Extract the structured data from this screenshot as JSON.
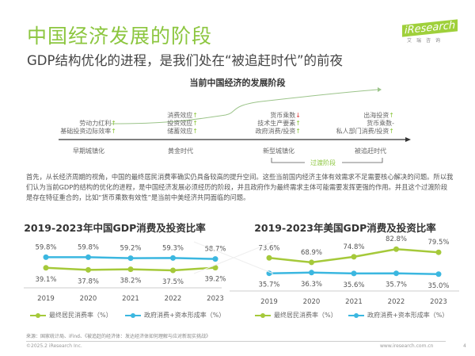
{
  "header": {
    "title": "中国经济发展的阶段",
    "subtitle": "GDP结构优化的进程，是我们处在“被追赶时代”的前夜",
    "logo_text": "iResearch",
    "logo_cn": "艾瑞咨询"
  },
  "timeline": {
    "title": "当前中国经济的发展阶段",
    "groups": [
      {
        "lines": [
          {
            "text": "劳动力红利",
            "arrow": "↑",
            "trend": "up"
          },
          {
            "text": "基础投资边际效率",
            "arrow": "↑",
            "trend": "up"
          }
        ]
      },
      {
        "lines": [
          {
            "text": "消费效应",
            "arrow": "↑",
            "trend": "up"
          },
          {
            "text": "投资效应",
            "arrow": "↑",
            "trend": "up"
          },
          {
            "text": "储蓄效应",
            "arrow": "↑",
            "trend": "up"
          }
        ]
      },
      {
        "lines": [
          {
            "text": "货币乘数",
            "arrow": "↓",
            "trend": "down"
          },
          {
            "text": "技术生产要素",
            "arrow": "↑",
            "trend": "up"
          },
          {
            "text": "政府消费/投资",
            "arrow": "↑",
            "trend": "up"
          }
        ]
      },
      {
        "lines": [
          {
            "text": "出海投资",
            "arrow": "↑",
            "trend": "up"
          },
          {
            "text": "货币乘数",
            "arrow": "-",
            "trend": "flat"
          },
          {
            "text": "私人部门消费/投资",
            "arrow": "↑",
            "trend": "up"
          }
        ]
      }
    ],
    "stages": [
      "早期城镇化",
      "黄金时代",
      "新型城镇化",
      "被追赶时代"
    ],
    "transition_label": "过渡阶段"
  },
  "paragraph": "首先，从长经济周期的视角，中国的最终居民消费率确实仍具备较高的提升空间。这些当前国内经济主体有效需求不足需要核心解决的问题。所以我们认为当前GDP的结构的优化的进程，是中国经济发展必须经历的阶段，并且政府作为最终需求主体可能需要发挥更强的作用。并且这个过渡阶段是存在特征重合的，比如“货币乘数有效性”是当前中美经济共同面临的问题。",
  "colors": {
    "green": "#a5c93a",
    "blue": "#3bb7e0",
    "title_green": "#8cc63f"
  },
  "chart_data": [
    {
      "type": "line",
      "title": "2019-2023年中国GDP消费及投资比率",
      "categories": [
        "2019",
        "2020",
        "2021",
        "2022",
        "2023"
      ],
      "series": [
        {
          "name": "最终居民消费率（%）",
          "values": [
            39.1,
            37.8,
            38.2,
            37.5,
            39.2
          ],
          "color": "#a5c93a"
        },
        {
          "name": "政府消费+资本形成率（%）",
          "values": [
            59.8,
            59.8,
            59.2,
            59.3,
            58.7
          ],
          "color": "#3bb7e0"
        }
      ],
      "data_labels": [
        [
          "39.1%",
          "37.8%",
          "38.2%",
          "37.5%",
          "39.2%"
        ],
        [
          "59.8%",
          "59.8%",
          "59.2%",
          "59.3%",
          "58.7%"
        ]
      ],
      "legend": "bottom"
    },
    {
      "type": "line",
      "title": "2019-2023年美国GDP消费及投资比率",
      "categories": [
        "2019",
        "2020",
        "2021",
        "2022",
        "2023"
      ],
      "series": [
        {
          "name": "最终居民消费率（%）",
          "values": [
            73.6,
            68.9,
            74.8,
            82.8,
            79.5
          ],
          "color": "#a5c93a"
        },
        {
          "name": "政府消费+资本形成率（%）",
          "values": [
            35.7,
            36.3,
            35.6,
            35.7,
            35.0
          ],
          "color": "#3bb7e0"
        }
      ],
      "data_labels": [
        [
          "73.6%",
          "68.9%",
          "74.8%",
          "82.8%",
          "79.5%"
        ],
        [
          "35.7%",
          "36.3%",
          "35.6%",
          "35.7%",
          "35.0%"
        ]
      ],
      "legend": "bottom"
    }
  ],
  "footer": {
    "source": "来源：国家统计局、iFind、《被追赶的经济体：发达经济体如何理解与应对新现实挑战》",
    "copyright": "©2025.2 iResearch Inc.",
    "site": "www.iresearch.com.cn",
    "page": "4"
  }
}
